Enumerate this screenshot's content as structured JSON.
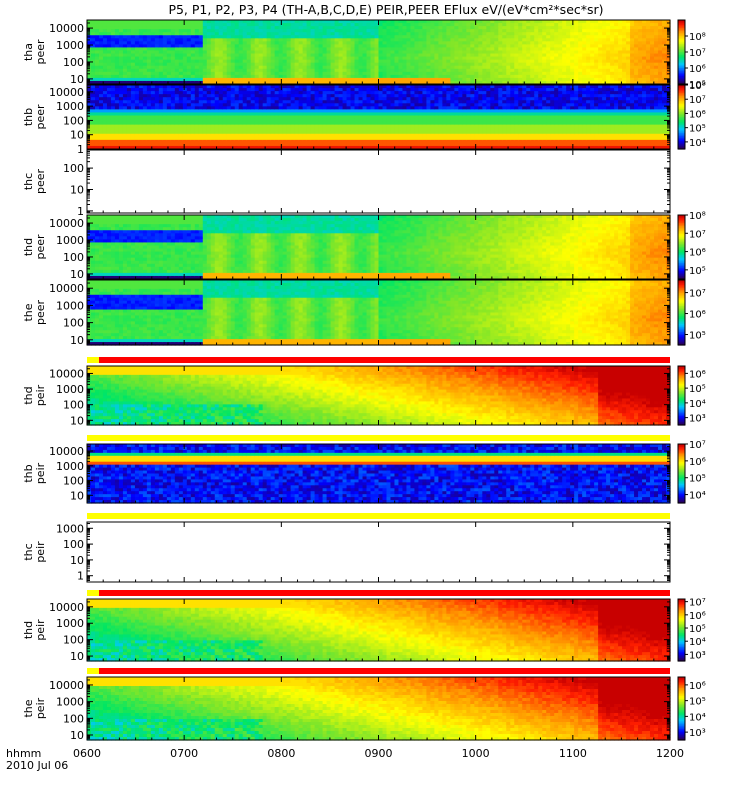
{
  "title": "P5, P1, P2, P3, P4 (TH-A,B,C,D,E) PEIR,PEER EFlux eV/(eV*cm²*sec*sr)",
  "footer": {
    "label": "hhmm",
    "date": "2010 Jul 06"
  },
  "colors": {
    "background": "#ffffff",
    "axis": "#000000",
    "missing": "#ffffff",
    "flag_good": "#ff0000",
    "flag_warn": "#ffff00"
  },
  "chart_data": {
    "type": "heatmap",
    "x_ticks": [
      "0600",
      "0700",
      "0800",
      "0900",
      "1000",
      "1100",
      "1200"
    ],
    "x_range": [
      "0600",
      "1200"
    ],
    "y_scale": "log",
    "panels": [
      {
        "probe": "tha",
        "product": "peer",
        "ylabel": [
          "tha",
          "peer"
        ],
        "yticks": [
          "10",
          "100",
          "1000",
          "10000"
        ],
        "ylim": [
          5,
          30000
        ],
        "pattern": "peer",
        "has_data": true,
        "has_flag": false,
        "flag_state": "",
        "cbar_ticks": [
          "10⁵",
          "10⁶",
          "10⁷",
          "10⁸"
        ],
        "cbar_range": [
          4.0,
          8.0
        ]
      },
      {
        "probe": "thb",
        "product": "peer",
        "ylabel": [
          "thb",
          "peer"
        ],
        "yticks": [
          "1",
          "10",
          "100",
          "1000",
          "10000"
        ],
        "ylim": [
          1,
          30000
        ],
        "pattern": "thb_peer",
        "has_data": true,
        "has_flag": false,
        "flag_state": "",
        "cbar_ticks": [
          "10⁴",
          "10⁵",
          "10⁶",
          "10⁷",
          "10⁸"
        ],
        "cbar_range": [
          3.5,
          8.0
        ]
      },
      {
        "probe": "thc",
        "product": "peer",
        "ylabel": [
          "thc",
          "peer"
        ],
        "yticks": [
          "1",
          "10",
          "100"
        ],
        "ylim": [
          0.8,
          700
        ],
        "pattern": "none",
        "has_data": false,
        "has_flag": false,
        "flag_state": "",
        "cbar_ticks": [],
        "cbar_range": []
      },
      {
        "probe": "thd",
        "product": "peer",
        "ylabel": [
          "thd",
          "peer"
        ],
        "yticks": [
          "10",
          "100",
          "1000",
          "10000"
        ],
        "ylim": [
          5,
          30000
        ],
        "pattern": "peer",
        "has_data": true,
        "has_flag": false,
        "flag_state": "",
        "cbar_ticks": [
          "10⁵",
          "10⁶",
          "10⁷",
          "10⁸"
        ],
        "cbar_range": [
          4.5,
          8.0
        ]
      },
      {
        "probe": "the",
        "product": "peer",
        "ylabel": [
          "the",
          "peer"
        ],
        "yticks": [
          "10",
          "100",
          "1000",
          "10000"
        ],
        "ylim": [
          5,
          30000
        ],
        "pattern": "peer",
        "has_data": true,
        "has_flag": false,
        "flag_state": "",
        "cbar_ticks": [
          "10⁵",
          "10⁶",
          "10⁷"
        ],
        "cbar_range": [
          4.5,
          7.6
        ]
      },
      {
        "probe": "thd",
        "product": "peir",
        "ylabel": [
          "thd",
          "peir"
        ],
        "yticks": [
          "10",
          "100",
          "1000",
          "10000"
        ],
        "ylim": [
          5,
          30000
        ],
        "pattern": "peir",
        "has_data": true,
        "has_flag": true,
        "flag_state": "good",
        "cbar_ticks": [
          "10³",
          "10⁴",
          "10⁵",
          "10⁶"
        ],
        "cbar_range": [
          2.5,
          6.5
        ]
      },
      {
        "probe": "thb",
        "product": "peir",
        "ylabel": [
          "thb",
          "peir"
        ],
        "yticks": [
          "10",
          "100",
          "1000",
          "10000"
        ],
        "ylim": [
          3,
          30000
        ],
        "pattern": "thb_peir",
        "has_data": true,
        "has_flag": true,
        "flag_state": "warn",
        "cbar_ticks": [
          "10⁴",
          "10⁵",
          "10⁶",
          "10⁷"
        ],
        "cbar_range": [
          3.5,
          7.0
        ]
      },
      {
        "probe": "thc",
        "product": "peir",
        "ylabel": [
          "thc",
          "peir"
        ],
        "yticks": [
          "1",
          "10",
          "100",
          "1000"
        ],
        "ylim": [
          0.4,
          2500
        ],
        "pattern": "none",
        "has_data": false,
        "has_flag": true,
        "flag_state": "warn",
        "cbar_ticks": [],
        "cbar_range": []
      },
      {
        "probe": "thd",
        "product": "peir",
        "ylabel": [
          "thd",
          "peir"
        ],
        "yticks": [
          "10",
          "100",
          "1000",
          "10000"
        ],
        "ylim": [
          5,
          30000
        ],
        "pattern": "peir",
        "has_data": true,
        "has_flag": true,
        "flag_state": "good",
        "cbar_ticks": [
          "10³",
          "10⁴",
          "10⁵",
          "10⁶",
          "10⁷"
        ],
        "cbar_range": [
          2.5,
          7.2
        ]
      },
      {
        "probe": "the",
        "product": "peir",
        "ylabel": [
          "the",
          "peir"
        ],
        "yticks": [
          "10",
          "100",
          "1000",
          "10000"
        ],
        "ylim": [
          5,
          30000
        ],
        "pattern": "peir",
        "has_data": true,
        "has_flag": true,
        "flag_state": "good",
        "cbar_ticks": [
          "10³",
          "10⁴",
          "10⁵",
          "10⁶"
        ],
        "cbar_range": [
          2.5,
          6.5
        ]
      }
    ]
  }
}
